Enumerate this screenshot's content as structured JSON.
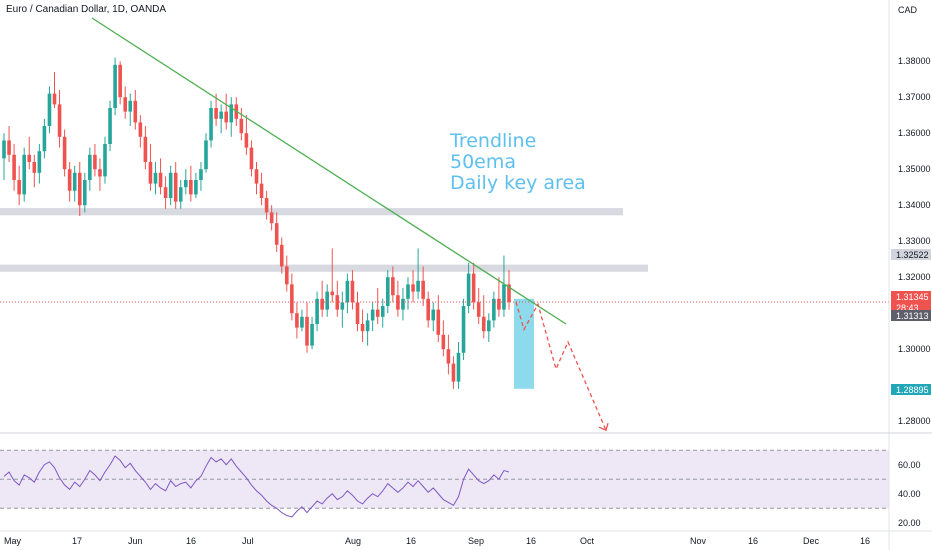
{
  "header": {
    "symbol_title": "Euro / Canadian Dollar, 1D, OANDA",
    "currency": "CAD"
  },
  "colors": {
    "up": "#26a69a",
    "down": "#ef5350",
    "trendline": "#4caf50",
    "zone": "#d1d4dc",
    "annotation": "#5ec0ef",
    "target_box": "#7fd6ea",
    "rsi_line": "#7e57c2",
    "rsi_band": "#ede7f6",
    "projection": "#ef5350"
  },
  "chart_data": {
    "type": "candlestick",
    "title": "Euro / Canadian Dollar, 1D, OANDA",
    "price_axis": {
      "label": "CAD",
      "ticks": [
        "1.38000",
        "1.37000",
        "1.36000",
        "1.35000",
        "1.34000",
        "1.33000",
        "1.32000",
        "1.30000",
        "1.28000"
      ],
      "range": [
        1.277,
        1.392
      ]
    },
    "time_axis": {
      "ticks": [
        "May",
        "17",
        "Jun",
        "16",
        "Jul",
        "Aug",
        "16",
        "Sep",
        "16",
        "Oct",
        "Nov",
        "16",
        "Dec",
        "16"
      ]
    },
    "price_badges": [
      {
        "text": "1.32522",
        "style": "gray"
      },
      {
        "text": "1.31345",
        "style": "red"
      },
      {
        "text": "28:43",
        "style": "red"
      },
      {
        "text": "1.31313",
        "style": "dark"
      },
      {
        "text": "1.28895",
        "style": "teal"
      }
    ],
    "annotation": [
      "Trendline",
      "50ema",
      "Daily key area"
    ],
    "key_zones": [
      [
        1.3372,
        1.3392
      ],
      [
        1.3215,
        1.3235
      ]
    ],
    "trendline": {
      "from": {
        "x": "late Apr",
        "y": 1.392
      },
      "to": {
        "x": "Sep 16",
        "y": 1.307
      }
    },
    "target_zone": [
      1.289,
      1.314
    ],
    "projection_path": [
      1.3131,
      1.3055,
      1.3125,
      1.2945,
      1.302,
      1.2775
    ],
    "series": [
      {
        "name": "EURCAD",
        "ohlc": [
          [
            1.353,
            1.36,
            1.347,
            1.358
          ],
          [
            1.358,
            1.362,
            1.352,
            1.354
          ],
          [
            1.354,
            1.357,
            1.344,
            1.347
          ],
          [
            1.347,
            1.351,
            1.34,
            1.343
          ],
          [
            1.343,
            1.356,
            1.341,
            1.354
          ],
          [
            1.354,
            1.359,
            1.35,
            1.352
          ],
          [
            1.352,
            1.354,
            1.345,
            1.349
          ],
          [
            1.349,
            1.357,
            1.346,
            1.355
          ],
          [
            1.355,
            1.364,
            1.353,
            1.362
          ],
          [
            1.362,
            1.373,
            1.36,
            1.371
          ],
          [
            1.371,
            1.377,
            1.367,
            1.368
          ],
          [
            1.368,
            1.372,
            1.356,
            1.359
          ],
          [
            1.359,
            1.361,
            1.348,
            1.35
          ],
          [
            1.35,
            1.352,
            1.341,
            1.344
          ],
          [
            1.344,
            1.351,
            1.341,
            1.349
          ],
          [
            1.349,
            1.352,
            1.337,
            1.34
          ],
          [
            1.34,
            1.349,
            1.338,
            1.347
          ],
          [
            1.347,
            1.356,
            1.344,
            1.354
          ],
          [
            1.354,
            1.357,
            1.348,
            1.35
          ],
          [
            1.35,
            1.353,
            1.344,
            1.348
          ],
          [
            1.348,
            1.359,
            1.346,
            1.357
          ],
          [
            1.357,
            1.369,
            1.355,
            1.367
          ],
          [
            1.367,
            1.381,
            1.365,
            1.379
          ],
          [
            1.379,
            1.38,
            1.368,
            1.37
          ],
          [
            1.37,
            1.373,
            1.364,
            1.366
          ],
          [
            1.366,
            1.371,
            1.362,
            1.369
          ],
          [
            1.369,
            1.372,
            1.361,
            1.363
          ],
          [
            1.363,
            1.365,
            1.356,
            1.359
          ],
          [
            1.359,
            1.362,
            1.35,
            1.352
          ],
          [
            1.352,
            1.357,
            1.344,
            1.346
          ],
          [
            1.346,
            1.352,
            1.343,
            1.349
          ],
          [
            1.349,
            1.353,
            1.343,
            1.345
          ],
          [
            1.345,
            1.348,
            1.339,
            1.342
          ],
          [
            1.342,
            1.351,
            1.34,
            1.349
          ],
          [
            1.349,
            1.352,
            1.339,
            1.341
          ],
          [
            1.341,
            1.347,
            1.339,
            1.345
          ],
          [
            1.345,
            1.35,
            1.343,
            1.347
          ],
          [
            1.347,
            1.351,
            1.341,
            1.343
          ],
          [
            1.343,
            1.349,
            1.342,
            1.347
          ],
          [
            1.347,
            1.352,
            1.344,
            1.35
          ],
          [
            1.35,
            1.36,
            1.349,
            1.358
          ],
          [
            1.358,
            1.369,
            1.356,
            1.367
          ],
          [
            1.367,
            1.371,
            1.362,
            1.364
          ],
          [
            1.364,
            1.368,
            1.36,
            1.366
          ],
          [
            1.366,
            1.371,
            1.361,
            1.363
          ],
          [
            1.363,
            1.37,
            1.359,
            1.368
          ],
          [
            1.368,
            1.37,
            1.362,
            1.364
          ],
          [
            1.364,
            1.367,
            1.358,
            1.36
          ],
          [
            1.36,
            1.365,
            1.354,
            1.356
          ],
          [
            1.356,
            1.358,
            1.348,
            1.35
          ],
          [
            1.35,
            1.352,
            1.343,
            1.346
          ],
          [
            1.346,
            1.349,
            1.34,
            1.342
          ],
          [
            1.342,
            1.344,
            1.336,
            1.338
          ],
          [
            1.338,
            1.34,
            1.333,
            1.335
          ],
          [
            1.335,
            1.338,
            1.327,
            1.329
          ],
          [
            1.329,
            1.331,
            1.321,
            1.323
          ],
          [
            1.323,
            1.326,
            1.316,
            1.318
          ],
          [
            1.318,
            1.321,
            1.308,
            1.31
          ],
          [
            1.31,
            1.313,
            1.303,
            1.306
          ],
          [
            1.306,
            1.311,
            1.305,
            1.309
          ],
          [
            1.309,
            1.313,
            1.299,
            1.301
          ],
          [
            1.301,
            1.309,
            1.3,
            1.307
          ],
          [
            1.307,
            1.316,
            1.305,
            1.314
          ],
          [
            1.314,
            1.319,
            1.309,
            1.311
          ],
          [
            1.311,
            1.318,
            1.309,
            1.316
          ],
          [
            1.316,
            1.328,
            1.313,
            1.315
          ],
          [
            1.315,
            1.319,
            1.309,
            1.311
          ],
          [
            1.311,
            1.316,
            1.306,
            1.313
          ],
          [
            1.313,
            1.321,
            1.31,
            1.319
          ],
          [
            1.319,
            1.322,
            1.311,
            1.313
          ],
          [
            1.313,
            1.316,
            1.305,
            1.307
          ],
          [
            1.307,
            1.311,
            1.302,
            1.305
          ],
          [
            1.305,
            1.31,
            1.301,
            1.308
          ],
          [
            1.308,
            1.313,
            1.305,
            1.311
          ],
          [
            1.311,
            1.317,
            1.307,
            1.309
          ],
          [
            1.309,
            1.314,
            1.306,
            1.312
          ],
          [
            1.312,
            1.322,
            1.31,
            1.32
          ],
          [
            1.32,
            1.323,
            1.313,
            1.315
          ],
          [
            1.315,
            1.319,
            1.309,
            1.311
          ],
          [
            1.311,
            1.317,
            1.308,
            1.314
          ],
          [
            1.314,
            1.32,
            1.311,
            1.318
          ],
          [
            1.318,
            1.322,
            1.313,
            1.316
          ],
          [
            1.316,
            1.328,
            1.314,
            1.319
          ],
          [
            1.319,
            1.323,
            1.312,
            1.314
          ],
          [
            1.314,
            1.316,
            1.306,
            1.308
          ],
          [
            1.308,
            1.313,
            1.305,
            1.311
          ],
          [
            1.311,
            1.315,
            1.302,
            1.304
          ],
          [
            1.304,
            1.308,
            1.298,
            1.3
          ],
          [
            1.3,
            1.304,
            1.293,
            1.296
          ],
          [
            1.296,
            1.298,
            1.289,
            1.291
          ],
          [
            1.291,
            1.302,
            1.289,
            1.299
          ],
          [
            1.299,
            1.314,
            1.297,
            1.312
          ],
          [
            1.312,
            1.324,
            1.31,
            1.321
          ],
          [
            1.321,
            1.324,
            1.311,
            1.313
          ],
          [
            1.313,
            1.317,
            1.307,
            1.309
          ],
          [
            1.309,
            1.315,
            1.303,
            1.305
          ],
          [
            1.305,
            1.31,
            1.302,
            1.308
          ],
          [
            1.308,
            1.316,
            1.306,
            1.314
          ],
          [
            1.314,
            1.32,
            1.309,
            1.311
          ],
          [
            1.311,
            1.326,
            1.309,
            1.318
          ],
          [
            1.318,
            1.322,
            1.311,
            1.3131
          ]
        ]
      },
      {
        "name": "RSI",
        "values": [
          52,
          55,
          49,
          46,
          53,
          51,
          48,
          55,
          60,
          62,
          58,
          51,
          46,
          43,
          48,
          45,
          50,
          56,
          53,
          49,
          55,
          60,
          66,
          63,
          58,
          61,
          56,
          52,
          48,
          43,
          47,
          44,
          42,
          49,
          45,
          47,
          48,
          44,
          49,
          52,
          59,
          65,
          62,
          64,
          60,
          64,
          59,
          55,
          51,
          46,
          42,
          39,
          35,
          32,
          30,
          27,
          25,
          24,
          28,
          31,
          27,
          31,
          35,
          33,
          37,
          40,
          36,
          38,
          42,
          39,
          35,
          33,
          37,
          40,
          38,
          42,
          47,
          44,
          41,
          44,
          48,
          45,
          49,
          45,
          41,
          44,
          40,
          36,
          34,
          32,
          38,
          50,
          57,
          53,
          49,
          47,
          49,
          53,
          50,
          56,
          55
        ],
        "levels": [
          70,
          50,
          30
        ],
        "ticks": [
          "60.00",
          "40.00",
          "20.00"
        ]
      }
    ]
  }
}
